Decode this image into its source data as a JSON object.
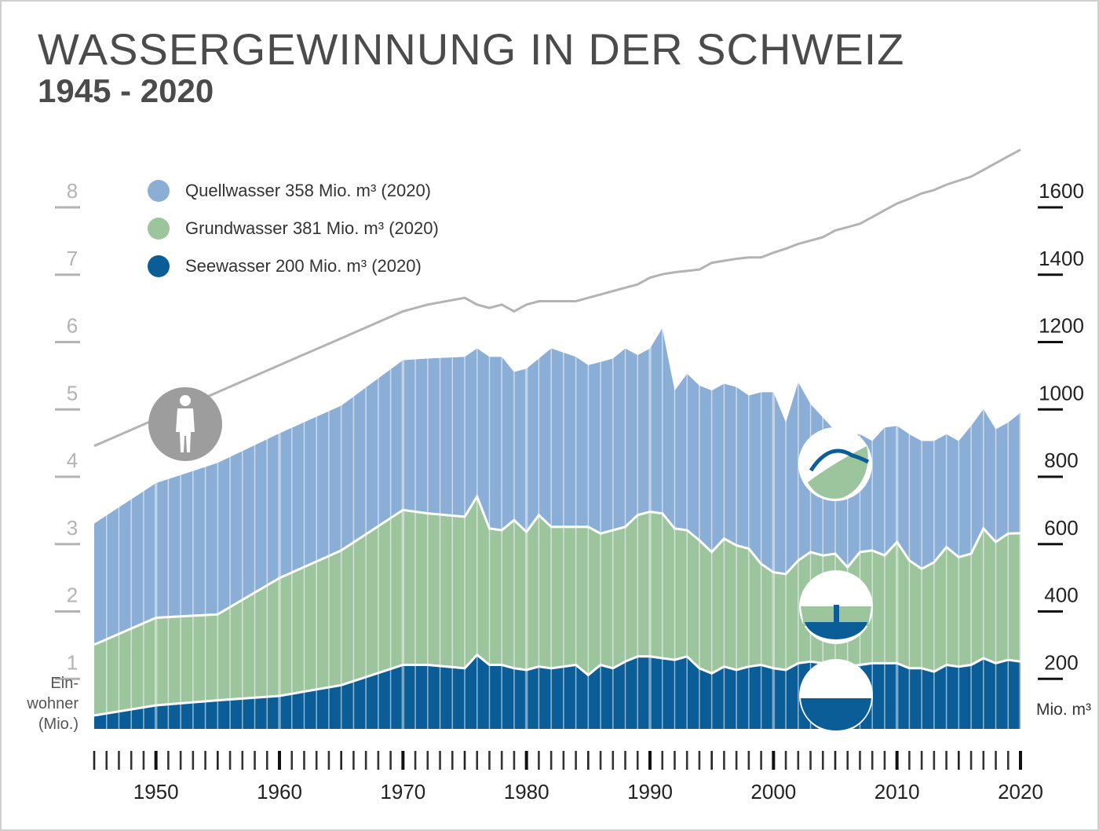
{
  "header": {
    "title": "WASSERGEWINNUNG IN DER SCHWEIZ",
    "subtitle": "1945 - 2020"
  },
  "legend": [
    {
      "label": "Quellwasser 358 Mio. m³ (2020)",
      "color": "#8aaed6"
    },
    {
      "label": "Grundwasser 381 Mio. m³ (2020)",
      "color": "#9cc49d"
    },
    {
      "label": "Seewasser 200 Mio. m³ (2020)",
      "color": "#0b5d98"
    }
  ],
  "axes": {
    "left_label": "Ein-\nwohner\n(Mio.)",
    "right_label": "Mio. m³"
  },
  "icons": [
    "person-icon",
    "spring-water-icon",
    "groundwater-icon",
    "lake-water-icon"
  ],
  "chart_data": {
    "type": "area",
    "stacked": true,
    "x_ticks": [
      1950,
      1960,
      1970,
      1980,
      1990,
      2000,
      2010,
      2020
    ],
    "xlim": [
      1945,
      2020
    ],
    "y_right": {
      "label": "Mio. m³",
      "lim": [
        0,
        1700
      ],
      "ticks": [
        200,
        400,
        600,
        800,
        1000,
        1200,
        1400,
        1600
      ]
    },
    "y_left": {
      "label": "Einwohner (Mio.)",
      "lim": [
        0,
        8.5
      ],
      "ticks": [
        1,
        2,
        3,
        4,
        5,
        6,
        7,
        8
      ]
    },
    "series": [
      {
        "name": "Seewasser",
        "color": "#0b5d98",
        "axis": "right",
        "x": [
          1945,
          1950,
          1955,
          1960,
          1965,
          1970,
          1972,
          1975,
          1976,
          1977,
          1978,
          1979,
          1980,
          1981,
          1982,
          1984,
          1985,
          1986,
          1987,
          1988,
          1989,
          1990,
          1991,
          1992,
          1993,
          1994,
          1995,
          1996,
          1997,
          1998,
          1999,
          2000,
          2001,
          2002,
          2003,
          2004,
          2005,
          2006,
          2007,
          2008,
          2009,
          2010,
          2011,
          2012,
          2013,
          2014,
          2015,
          2016,
          2017,
          2018,
          2019,
          2020
        ],
        "values": [
          40,
          70,
          85,
          98,
          130,
          190,
          190,
          180,
          220,
          190,
          190,
          180,
          175,
          185,
          180,
          190,
          160,
          190,
          180,
          200,
          215,
          215,
          210,
          205,
          215,
          180,
          165,
          185,
          175,
          185,
          190,
          180,
          175,
          195,
          200,
          195,
          185,
          185,
          190,
          195,
          195,
          195,
          180,
          180,
          170,
          190,
          185,
          190,
          210,
          195,
          205,
          200
        ]
      },
      {
        "name": "Grundwasser",
        "color": "#9cc49d",
        "axis": "right",
        "x": [
          1945,
          1950,
          1955,
          1960,
          1965,
          1970,
          1972,
          1975,
          1976,
          1977,
          1978,
          1979,
          1980,
          1981,
          1982,
          1984,
          1985,
          1986,
          1987,
          1988,
          1989,
          1990,
          1991,
          1992,
          1993,
          1994,
          1995,
          1996,
          1997,
          1998,
          1999,
          2000,
          2001,
          2002,
          2003,
          2004,
          2005,
          2006,
          2007,
          2008,
          2009,
          2010,
          2011,
          2012,
          2013,
          2014,
          2015,
          2016,
          2017,
          2018,
          2019,
          2020
        ],
        "values": [
          210,
          260,
          255,
          350,
          400,
          460,
          450,
          450,
          470,
          405,
          400,
          440,
          410,
          450,
          420,
          410,
          440,
          390,
          410,
          400,
          420,
          430,
          430,
          390,
          375,
          380,
          360,
          380,
          370,
          350,
          300,
          285,
          285,
          305,
          325,
          320,
          335,
          295,
          335,
          335,
          320,
          360,
          320,
          295,
          325,
          350,
          325,
          330,
          385,
          360,
          375,
          381
        ]
      },
      {
        "name": "Quellwasser",
        "color": "#8aaed6",
        "axis": "right",
        "x": [
          1945,
          1950,
          1955,
          1960,
          1965,
          1970,
          1972,
          1975,
          1976,
          1977,
          1978,
          1979,
          1980,
          1981,
          1982,
          1984,
          1985,
          1986,
          1987,
          1988,
          1989,
          1990,
          1991,
          1992,
          1993,
          1994,
          1995,
          1996,
          1997,
          1998,
          1999,
          2000,
          2001,
          2002,
          2003,
          2004,
          2005,
          2006,
          2007,
          2008,
          2009,
          2010,
          2011,
          2012,
          2013,
          2014,
          2015,
          2016,
          2017,
          2018,
          2019,
          2020
        ],
        "values": [
          360,
          400,
          450,
          430,
          430,
          445,
          460,
          475,
          440,
          510,
          515,
          440,
          485,
          465,
          530,
          505,
          480,
          510,
          510,
          530,
          475,
          485,
          550,
          410,
          465,
          460,
          480,
          460,
          470,
          455,
          510,
          535,
          450,
          530,
          440,
          410,
          365,
          395,
          350,
          325,
          380,
          345,
          375,
          380,
          360,
          335,
          345,
          380,
          355,
          335,
          330,
          358
        ]
      },
      {
        "name": "Einwohner",
        "color": "#b3b3b3",
        "axis": "left",
        "kind": "line",
        "x": [
          1945,
          1950,
          1955,
          1960,
          1965,
          1970,
          1972,
          1975,
          1976,
          1977,
          1978,
          1979,
          1980,
          1981,
          1982,
          1984,
          1985,
          1986,
          1987,
          1988,
          1989,
          1990,
          1991,
          1992,
          1993,
          1994,
          1995,
          1996,
          1997,
          1998,
          1999,
          2000,
          2001,
          2002,
          2003,
          2004,
          2005,
          2006,
          2007,
          2008,
          2009,
          2010,
          2011,
          2012,
          2013,
          2014,
          2015,
          2016,
          2017,
          2018,
          2019,
          2020
        ],
        "values": [
          4.2,
          4.6,
          5.0,
          5.4,
          5.8,
          6.2,
          6.3,
          6.4,
          6.3,
          6.25,
          6.3,
          6.2,
          6.3,
          6.35,
          6.35,
          6.35,
          6.4,
          6.45,
          6.5,
          6.55,
          6.6,
          6.7,
          6.75,
          6.78,
          6.8,
          6.82,
          6.92,
          6.95,
          6.98,
          7.0,
          7.0,
          7.07,
          7.13,
          7.2,
          7.25,
          7.3,
          7.4,
          7.45,
          7.5,
          7.6,
          7.7,
          7.8,
          7.87,
          7.95,
          8.0,
          8.08,
          8.14,
          8.2,
          8.3,
          8.4,
          8.5,
          8.6
        ]
      }
    ]
  }
}
